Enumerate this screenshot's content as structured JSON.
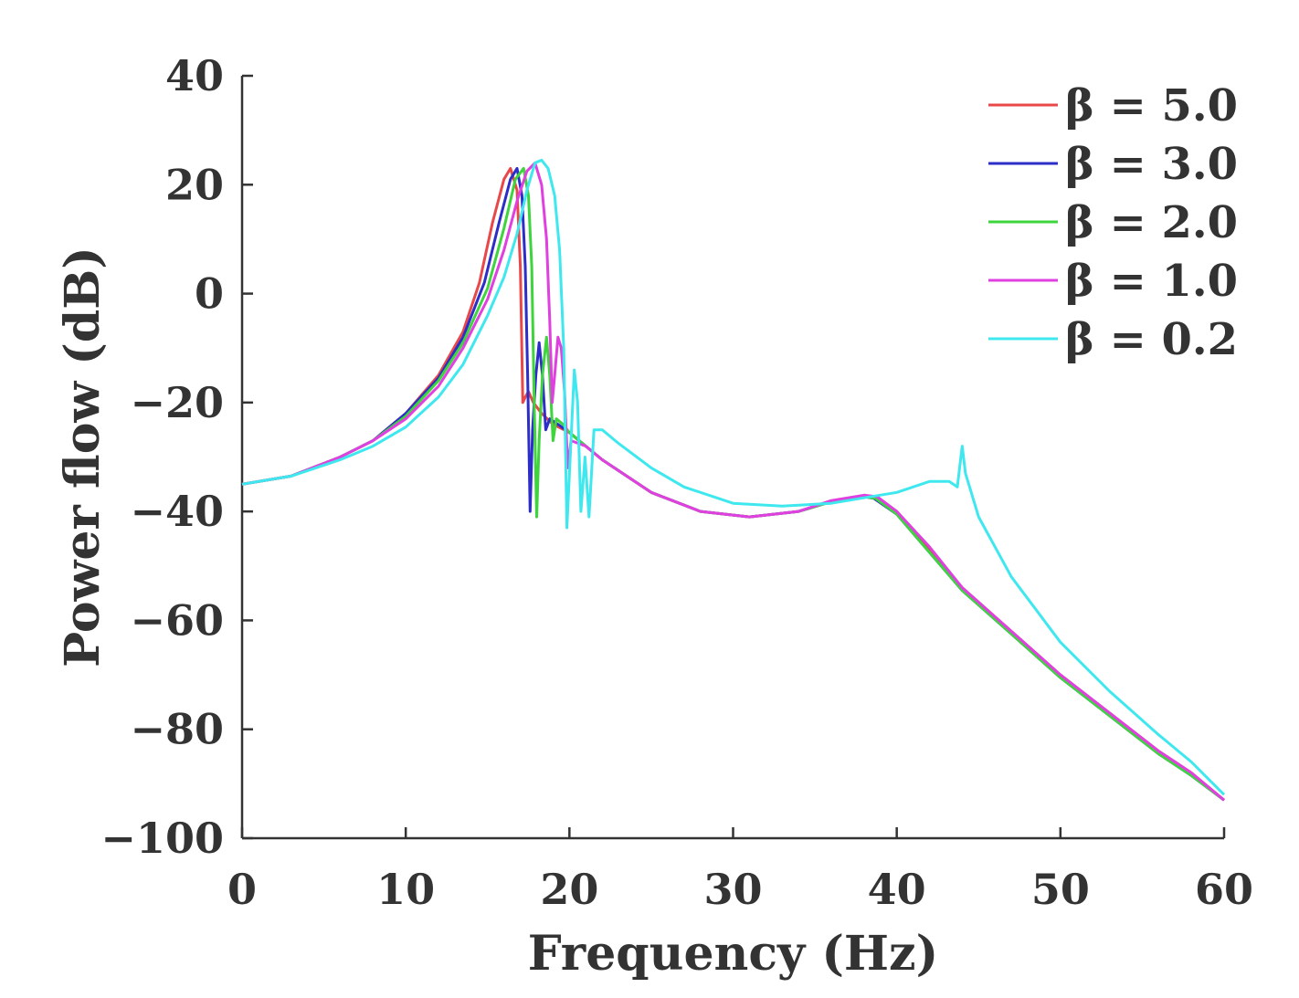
{
  "chart_data": {
    "type": "line",
    "title": "",
    "xlabel": "Frequency (Hz)",
    "ylabel": "Power flow (dB)",
    "xlim": [
      0,
      60
    ],
    "ylim": [
      -100,
      40
    ],
    "xticks": [
      0,
      10,
      20,
      30,
      40,
      50,
      60
    ],
    "yticks": [
      40,
      20,
      0,
      -20,
      -40,
      -60,
      -80,
      -100
    ],
    "xtick_labels": [
      "0",
      "10",
      "20",
      "30",
      "40",
      "50",
      "60"
    ],
    "ytick_labels": [
      "40",
      "20",
      "0",
      "−20",
      "−40",
      "−60",
      "−80",
      "−100"
    ],
    "grid": false,
    "legend_position": "top-right",
    "series": [
      {
        "name": "β = 5.0",
        "color": "#e8484a",
        "points": [
          [
            0,
            -35
          ],
          [
            3,
            -33.5
          ],
          [
            6,
            -30
          ],
          [
            8,
            -27
          ],
          [
            10,
            -22
          ],
          [
            12,
            -15
          ],
          [
            13.5,
            -7
          ],
          [
            14.5,
            2
          ],
          [
            15.3,
            13
          ],
          [
            16,
            21
          ],
          [
            16.4,
            23
          ],
          [
            16.8,
            19
          ],
          [
            17,
            5
          ],
          [
            17.15,
            -20
          ],
          [
            17.3,
            -19
          ],
          [
            17.5,
            -18
          ],
          [
            17.8,
            -20
          ],
          [
            18.3,
            -22
          ],
          [
            19,
            -24
          ],
          [
            20,
            -25.5
          ],
          [
            22,
            -30.5
          ],
          [
            25,
            -36.5
          ],
          [
            28,
            -40
          ],
          [
            31,
            -41
          ],
          [
            34,
            -40
          ],
          [
            36,
            -38.2
          ],
          [
            38,
            -37.2
          ],
          [
            38.8,
            -37.5
          ],
          [
            40,
            -40
          ],
          [
            42,
            -47
          ],
          [
            44,
            -54
          ],
          [
            47,
            -62
          ],
          [
            50,
            -70
          ],
          [
            53,
            -77
          ],
          [
            56,
            -84
          ],
          [
            58,
            -88
          ],
          [
            60,
            -93
          ]
        ]
      },
      {
        "name": "β = 3.0",
        "color": "#2d2dc8",
        "points": [
          [
            0,
            -35
          ],
          [
            3,
            -33.5
          ],
          [
            6,
            -30
          ],
          [
            8,
            -27
          ],
          [
            10,
            -22
          ],
          [
            12,
            -15.5
          ],
          [
            13.5,
            -8
          ],
          [
            14.8,
            2
          ],
          [
            15.7,
            13
          ],
          [
            16.4,
            21
          ],
          [
            16.8,
            23
          ],
          [
            17.1,
            18
          ],
          [
            17.3,
            5
          ],
          [
            17.45,
            -15
          ],
          [
            17.6,
            -40
          ],
          [
            17.75,
            -25
          ],
          [
            17.95,
            -15
          ],
          [
            18.15,
            -9
          ],
          [
            18.35,
            -15
          ],
          [
            18.55,
            -25
          ],
          [
            18.8,
            -23
          ],
          [
            19.3,
            -24
          ],
          [
            20,
            -25.5
          ],
          [
            22,
            -30.5
          ],
          [
            25,
            -36.5
          ],
          [
            28,
            -40
          ],
          [
            31,
            -41
          ],
          [
            34,
            -40
          ],
          [
            36,
            -38.2
          ],
          [
            38,
            -37.3
          ],
          [
            38.6,
            -37.6
          ],
          [
            40,
            -40.5
          ],
          [
            42,
            -47.5
          ],
          [
            44,
            -54.5
          ],
          [
            47,
            -62.5
          ],
          [
            50,
            -70.5
          ],
          [
            53,
            -77.5
          ],
          [
            56,
            -84.5
          ],
          [
            58,
            -88.5
          ],
          [
            60,
            -93
          ]
        ]
      },
      {
        "name": "β = 2.0",
        "color": "#3ed43e",
        "points": [
          [
            0,
            -35
          ],
          [
            3,
            -33.5
          ],
          [
            6,
            -30
          ],
          [
            8,
            -27
          ],
          [
            10,
            -22.5
          ],
          [
            12,
            -16
          ],
          [
            13.5,
            -9
          ],
          [
            15,
            1
          ],
          [
            16,
            12
          ],
          [
            16.7,
            21
          ],
          [
            17.2,
            23
          ],
          [
            17.5,
            18
          ],
          [
            17.7,
            5
          ],
          [
            17.85,
            -20
          ],
          [
            18,
            -41
          ],
          [
            18.15,
            -27
          ],
          [
            18.35,
            -15
          ],
          [
            18.6,
            -8
          ],
          [
            18.8,
            -15
          ],
          [
            19,
            -27
          ],
          [
            19.2,
            -23
          ],
          [
            19.6,
            -24
          ],
          [
            20,
            -25.5
          ],
          [
            22,
            -30.5
          ],
          [
            25,
            -36.5
          ],
          [
            28,
            -40
          ],
          [
            31,
            -41
          ],
          [
            34,
            -40
          ],
          [
            36,
            -38.2
          ],
          [
            38,
            -37.3
          ],
          [
            38.7,
            -37.6
          ],
          [
            40,
            -40.5
          ],
          [
            42,
            -47.5
          ],
          [
            44,
            -54.5
          ],
          [
            47,
            -62.5
          ],
          [
            50,
            -70.5
          ],
          [
            53,
            -77.5
          ],
          [
            56,
            -84.5
          ],
          [
            58,
            -88.5
          ],
          [
            60,
            -93
          ]
        ]
      },
      {
        "name": "β = 1.0",
        "color": "#e040e0",
        "points": [
          [
            0,
            -35
          ],
          [
            3,
            -33.5
          ],
          [
            6,
            -30
          ],
          [
            8,
            -27
          ],
          [
            10,
            -23
          ],
          [
            12,
            -17
          ],
          [
            13.5,
            -10
          ],
          [
            15,
            -1
          ],
          [
            16,
            8
          ],
          [
            16.8,
            17
          ],
          [
            17.4,
            22.5
          ],
          [
            17.9,
            24
          ],
          [
            18.3,
            20
          ],
          [
            18.6,
            10
          ],
          [
            18.8,
            -5
          ],
          [
            18.95,
            -20
          ],
          [
            19.1,
            -15
          ],
          [
            19.3,
            -8
          ],
          [
            19.5,
            -10
          ],
          [
            19.7,
            -18
          ],
          [
            19.9,
            -32
          ],
          [
            20.1,
            -27
          ],
          [
            21,
            -28
          ],
          [
            22,
            -30.5
          ],
          [
            25,
            -36.5
          ],
          [
            28,
            -40
          ],
          [
            31,
            -41
          ],
          [
            34,
            -40
          ],
          [
            36,
            -38
          ],
          [
            38,
            -37
          ],
          [
            38.8,
            -37.3
          ],
          [
            40,
            -40
          ],
          [
            42,
            -46.5
          ],
          [
            44,
            -54
          ],
          [
            47,
            -62
          ],
          [
            50,
            -70
          ],
          [
            53,
            -77
          ],
          [
            56,
            -84
          ],
          [
            58,
            -88
          ],
          [
            60,
            -93
          ]
        ]
      },
      {
        "name": "β = 0.2",
        "color": "#3ee8ee",
        "points": [
          [
            0,
            -35
          ],
          [
            3,
            -33.5
          ],
          [
            6,
            -30.5
          ],
          [
            8,
            -28
          ],
          [
            10,
            -24.5
          ],
          [
            12,
            -19
          ],
          [
            13.5,
            -13
          ],
          [
            15,
            -4
          ],
          [
            16,
            3
          ],
          [
            16.8,
            11
          ],
          [
            17.4,
            19
          ],
          [
            17.9,
            24
          ],
          [
            18.3,
            24.5
          ],
          [
            18.7,
            23
          ],
          [
            19.1,
            18
          ],
          [
            19.4,
            8
          ],
          [
            19.65,
            -10
          ],
          [
            19.85,
            -43
          ],
          [
            20.05,
            -30
          ],
          [
            20.3,
            -14
          ],
          [
            20.5,
            -20
          ],
          [
            20.7,
            -40
          ],
          [
            20.95,
            -30
          ],
          [
            21.2,
            -41
          ],
          [
            21.5,
            -25
          ],
          [
            22,
            -25
          ],
          [
            23,
            -27.5
          ],
          [
            25,
            -32
          ],
          [
            27,
            -35.5
          ],
          [
            30,
            -38.5
          ],
          [
            33,
            -39
          ],
          [
            36,
            -38.5
          ],
          [
            38,
            -37.5
          ],
          [
            40,
            -36.5
          ],
          [
            42,
            -34.5
          ],
          [
            43.2,
            -34.5
          ],
          [
            43.7,
            -35.5
          ],
          [
            44,
            -28
          ],
          [
            44.2,
            -33
          ],
          [
            45,
            -41
          ],
          [
            47,
            -52
          ],
          [
            50,
            -64
          ],
          [
            53,
            -73
          ],
          [
            56,
            -81
          ],
          [
            58,
            -86
          ],
          [
            60,
            -92
          ]
        ]
      }
    ]
  }
}
